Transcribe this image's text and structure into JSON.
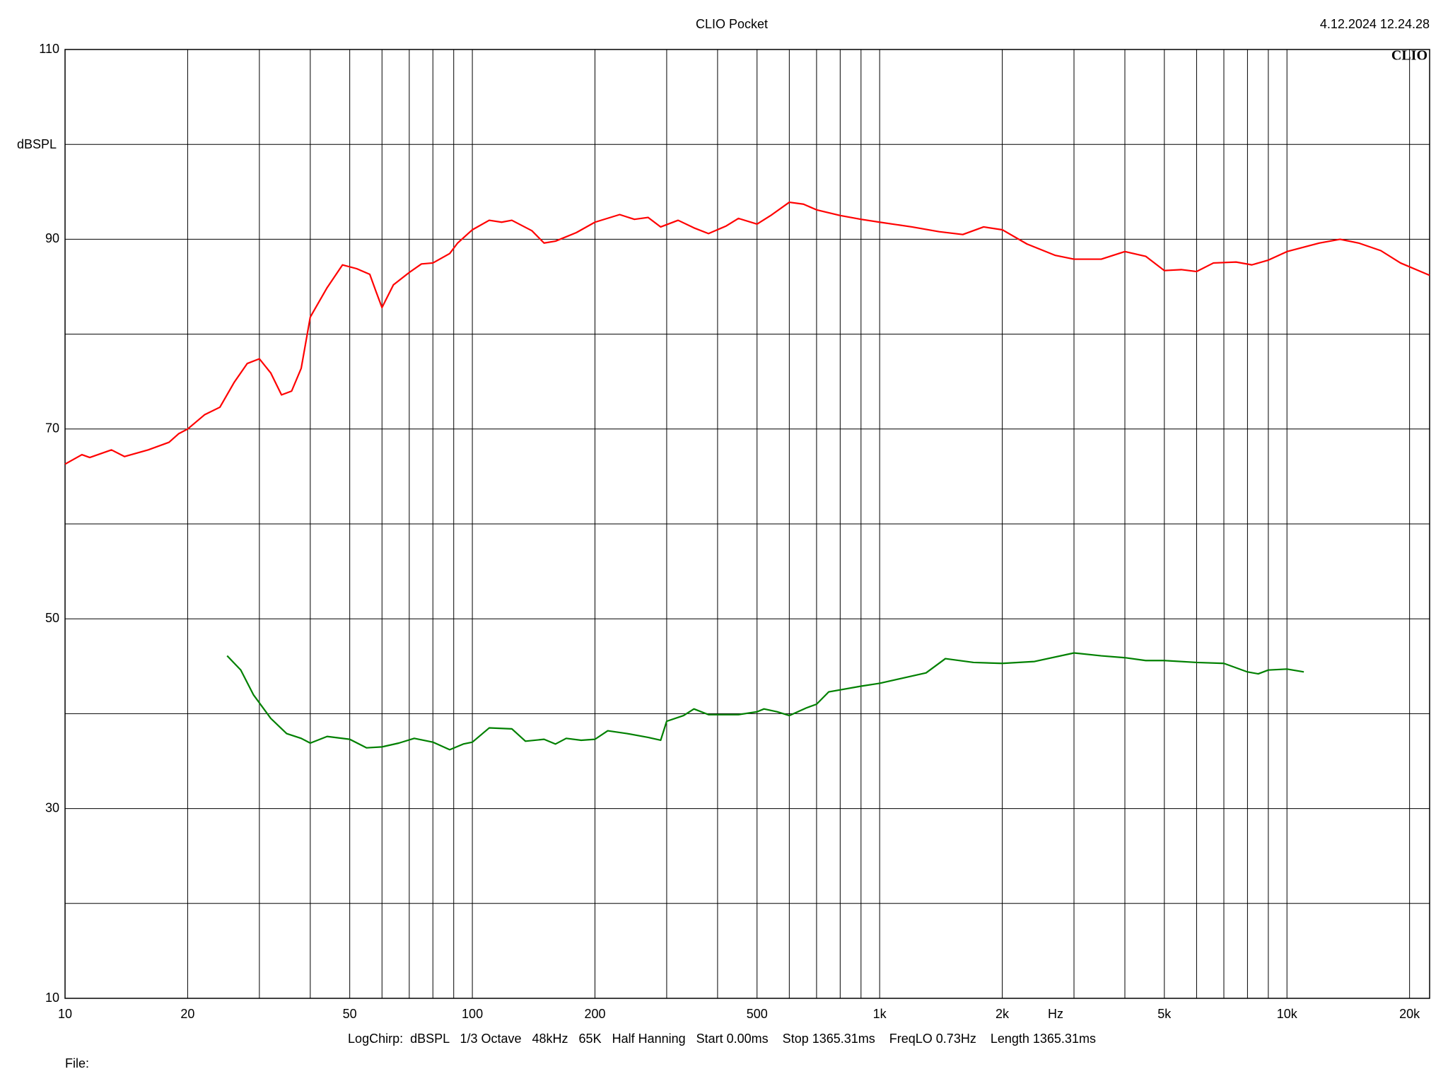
{
  "chart_data": {
    "type": "line",
    "title": "CLIO Pocket",
    "timestamp": "4.12.2024 12.24.28",
    "logo": "CLIO",
    "ylabel": "dBSPL",
    "xlabel": "Hz",
    "settings_line": "LogChirp:  dBSPL   1/3 Octave   48kHz   65K   Half Hanning   Start 0.00ms    Stop 1365.31ms    FreqLO 0.73Hz    Length 1365.31ms",
    "file_label": "File:",
    "xscale": "log",
    "grid": true,
    "xlim": [
      10,
      22400
    ],
    "ylim": [
      10,
      110
    ],
    "yticks": [
      10,
      30,
      50,
      70,
      90,
      110
    ],
    "yminor": [
      20,
      40,
      60,
      80,
      100
    ],
    "xticks": [
      10,
      20,
      50,
      100,
      200,
      500,
      {
        "value": 1000,
        "label": "1k"
      },
      {
        "value": 2000,
        "label": "2k"
      },
      {
        "value": 5000,
        "label": "5k"
      },
      {
        "value": 10000,
        "label": "10k"
      },
      {
        "value": 20000,
        "label": "20k"
      }
    ],
    "xminor": [
      30,
      40,
      60,
      70,
      80,
      90,
      300,
      400,
      600,
      700,
      800,
      900,
      3000,
      4000,
      6000,
      7000,
      8000,
      9000
    ],
    "series": [
      {
        "color": "#ff0000",
        "x": [
          10,
          11,
          11.5,
          13,
          14,
          16,
          18,
          19,
          20,
          22,
          24,
          26,
          28,
          30,
          32,
          34,
          36,
          38,
          40,
          44,
          48,
          52,
          56,
          58,
          60,
          64,
          70,
          75,
          80,
          88,
          92,
          100,
          110,
          118,
          125,
          140,
          150,
          160,
          180,
          200,
          230,
          250,
          270,
          290,
          320,
          350,
          380,
          420,
          450,
          500,
          540,
          600,
          650,
          700,
          800,
          900,
          1000,
          1200,
          1400,
          1600,
          1800,
          2000,
          2300,
          2700,
          3000,
          3500,
          4000,
          4500,
          5000,
          5500,
          6000,
          6600,
          7500,
          8200,
          9000,
          10000,
          12000,
          13500,
          15000,
          17000,
          19000,
          22400
        ],
        "values": [
          66.3,
          67.3,
          67.0,
          67.8,
          67.1,
          67.8,
          68.6,
          69.5,
          70.0,
          71.5,
          72.3,
          74.9,
          76.9,
          77.4,
          75.9,
          73.6,
          74.0,
          76.4,
          81.8,
          84.9,
          87.3,
          86.9,
          86.3,
          84.5,
          82.8,
          85.2,
          86.5,
          87.4,
          87.5,
          88.5,
          89.6,
          91.0,
          92.0,
          91.8,
          92.0,
          90.9,
          89.6,
          89.8,
          90.7,
          91.8,
          92.6,
          92.1,
          92.3,
          91.3,
          92.0,
          91.2,
          90.6,
          91.4,
          92.2,
          91.6,
          92.5,
          93.9,
          93.7,
          93.1,
          92.5,
          92.1,
          91.8,
          91.3,
          90.8,
          90.5,
          91.3,
          91.0,
          89.5,
          88.3,
          87.9,
          87.9,
          88.7,
          88.2,
          86.7,
          86.8,
          86.6,
          87.5,
          87.6,
          87.3,
          87.8,
          88.7,
          89.6,
          90.0,
          89.6,
          88.8,
          87.5,
          86.2
        ]
      },
      {
        "color": "#008000",
        "x": [
          25,
          27,
          29,
          32,
          35,
          38,
          40,
          44,
          50,
          55,
          60,
          66,
          72,
          80,
          88,
          95,
          100,
          110,
          125,
          135,
          150,
          160,
          170,
          185,
          200,
          215,
          240,
          270,
          290,
          300,
          330,
          350,
          380,
          450,
          500,
          520,
          560,
          600,
          660,
          700,
          750,
          900,
          1000,
          1100,
          1300,
          1450,
          1700,
          2000,
          2400,
          3000,
          3500,
          4000,
          4500,
          5000,
          6000,
          7000,
          8000,
          8500,
          9000,
          10000,
          11000
        ],
        "values": [
          46.1,
          44.6,
          42.0,
          39.5,
          37.9,
          37.4,
          36.9,
          37.6,
          37.3,
          36.4,
          36.5,
          36.9,
          37.4,
          37.0,
          36.2,
          36.8,
          37.0,
          38.5,
          38.4,
          37.1,
          37.3,
          36.8,
          37.4,
          37.2,
          37.3,
          38.2,
          37.9,
          37.5,
          37.2,
          39.2,
          39.8,
          40.5,
          39.9,
          39.9,
          40.2,
          40.5,
          40.2,
          39.8,
          40.6,
          41.0,
          42.3,
          42.9,
          43.2,
          43.6,
          44.3,
          45.8,
          45.4,
          45.3,
          45.5,
          46.4,
          46.1,
          45.9,
          45.6,
          45.6,
          45.4,
          45.3,
          44.4,
          44.2,
          44.6,
          44.7,
          44.4
        ]
      }
    ]
  }
}
